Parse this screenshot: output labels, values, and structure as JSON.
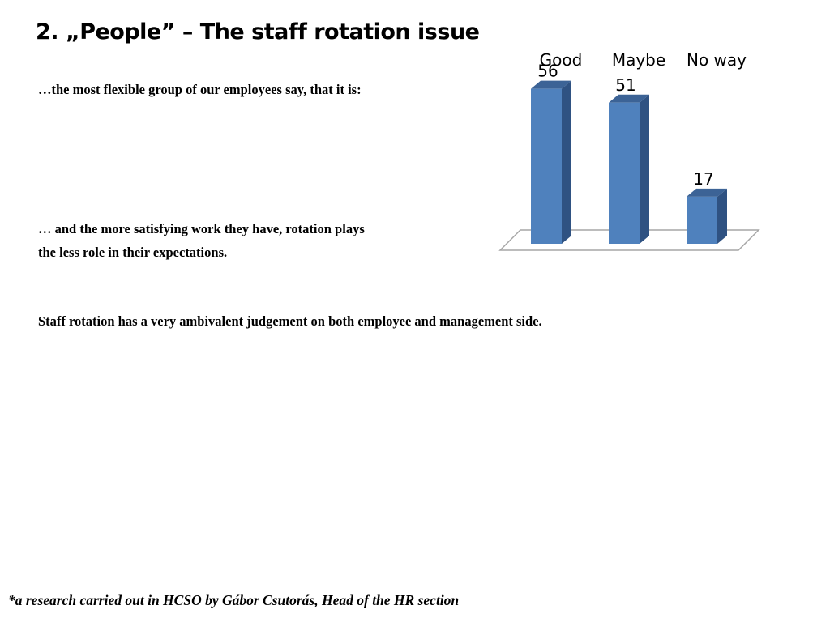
{
  "slide": {
    "title": "2. „People” – The staff rotation issue",
    "text1": "…the most flexible group of our employees say, that it is:",
    "text2_line1": "… and the more satisfying work they have, rotation plays",
    "text2_line2": "the less role in their expectations.",
    "text3": "Staff rotation has a very ambivalent judgement on both employee and management side.",
    "footnote": "*a research carried out in HCSO by Gábor Csutorás, Head of the HR section"
  },
  "chart_data": {
    "type": "bar",
    "categories": [
      "Good",
      "Maybe",
      "No way"
    ],
    "values": [
      56,
      51,
      17
    ],
    "ylim": [
      0,
      60
    ],
    "grid": false,
    "legend": "none",
    "data_labels": true,
    "colors": {
      "bar_front": "#4f81bd",
      "bar_side": "#2f5282",
      "bar_top": "#3c6396",
      "floor": "#ffffff",
      "floor_stroke": "#a6a6a6"
    }
  }
}
